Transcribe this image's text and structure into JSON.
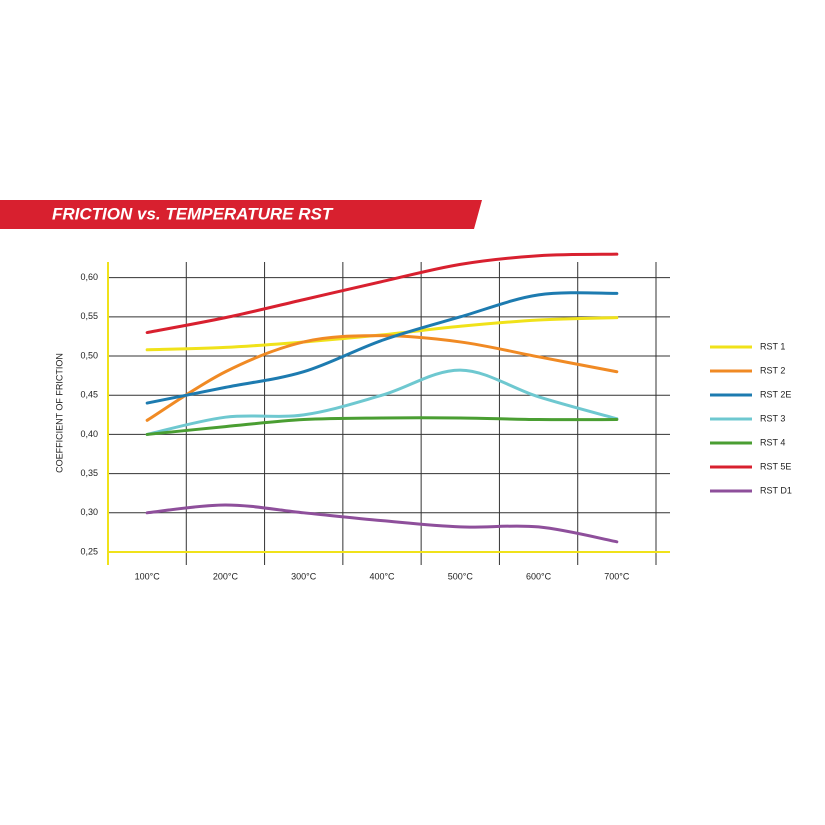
{
  "chart_data": {
    "type": "line",
    "title": "FRICTION vs. TEMPERATURE RST",
    "y_label": "COEFFICIENT OF FRICTION",
    "categories": [
      "100°C",
      "200°C",
      "300°C",
      "400°C",
      "500°C",
      "600°C",
      "700°C"
    ],
    "series": [
      {
        "name": "RST 1",
        "color": "#f0e21a",
        "values": [
          0.508,
          0.511,
          0.518,
          0.527,
          0.538,
          0.546,
          0.549
        ]
      },
      {
        "name": "RST 2",
        "color": "#f08a24",
        "values": [
          0.418,
          0.48,
          0.518,
          0.526,
          0.518,
          0.499,
          0.48
        ]
      },
      {
        "name": "RST 2E",
        "color": "#1d7bb0",
        "values": [
          0.44,
          0.46,
          0.48,
          0.52,
          0.55,
          0.578,
          0.58
        ]
      },
      {
        "name": "RST 3",
        "color": "#6ec8d0",
        "values": [
          0.4,
          0.422,
          0.425,
          0.45,
          0.482,
          0.448,
          0.42
        ]
      },
      {
        "name": "RST 4",
        "color": "#4a9e32",
        "values": [
          0.4,
          0.41,
          0.419,
          0.421,
          0.421,
          0.419,
          0.419
        ]
      },
      {
        "name": "RST 5E",
        "color": "#d8202f",
        "values": [
          0.53,
          0.549,
          0.572,
          0.595,
          0.617,
          0.628,
          0.63
        ]
      },
      {
        "name": "RST D1",
        "color": "#8e4f9b",
        "values": [
          0.3,
          0.31,
          0.3,
          0.29,
          0.282,
          0.282,
          0.263
        ]
      }
    ],
    "ylim": [
      0.25,
      0.62
    ],
    "yticks": [
      {
        "value": 0.25,
        "label": "0,25"
      },
      {
        "value": 0.3,
        "label": "0,30"
      },
      {
        "value": 0.35,
        "label": "0,35"
      },
      {
        "value": 0.4,
        "label": "0,40"
      },
      {
        "value": 0.45,
        "label": "0,45"
      },
      {
        "value": 0.5,
        "label": "0,50"
      },
      {
        "value": 0.55,
        "label": "0,55"
      },
      {
        "value": 0.6,
        "label": "0,60"
      }
    ],
    "grid": true,
    "legend": "right"
  }
}
